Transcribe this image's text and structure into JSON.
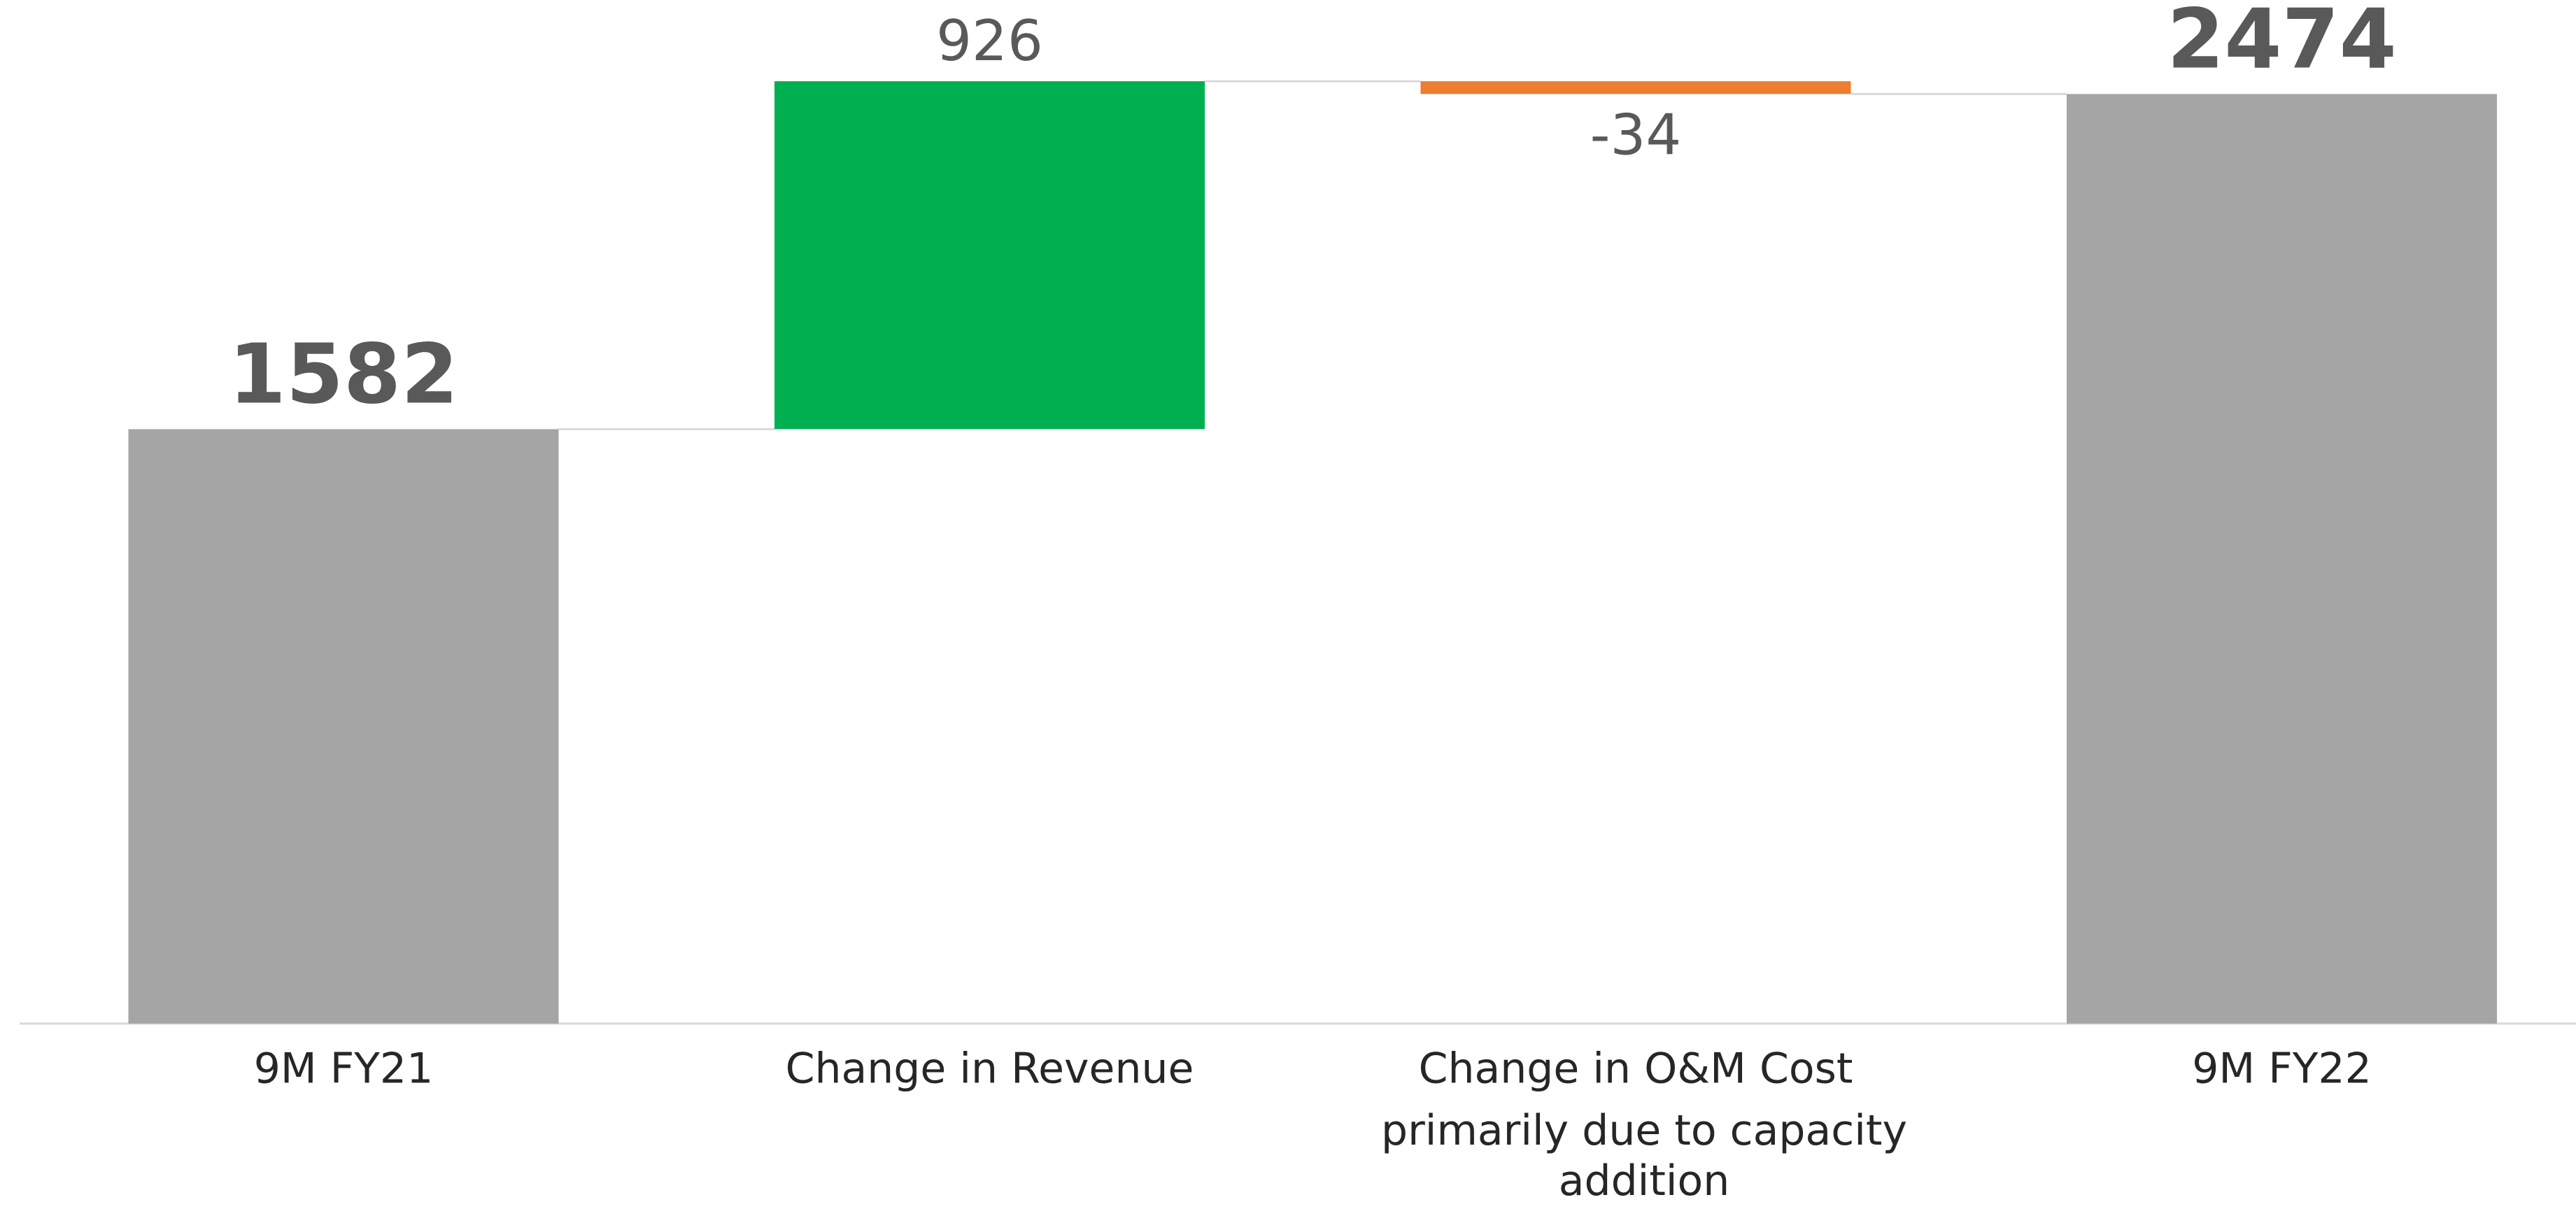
{
  "chart_data": {
    "type": "waterfall",
    "categories": [
      "9M FY21",
      "Change in Revenue",
      "Change in O&M Cost",
      "9M FY22"
    ],
    "values": [
      1582,
      926,
      -34,
      2474
    ],
    "measure": [
      "total",
      "relative",
      "relative",
      "total"
    ],
    "colors": [
      "#a5a5a5",
      "#00b050",
      "#ed7d31",
      "#a5a5a5"
    ],
    "annotation": "primarily due to capacity addition",
    "ylim": [
      0,
      2700
    ]
  }
}
